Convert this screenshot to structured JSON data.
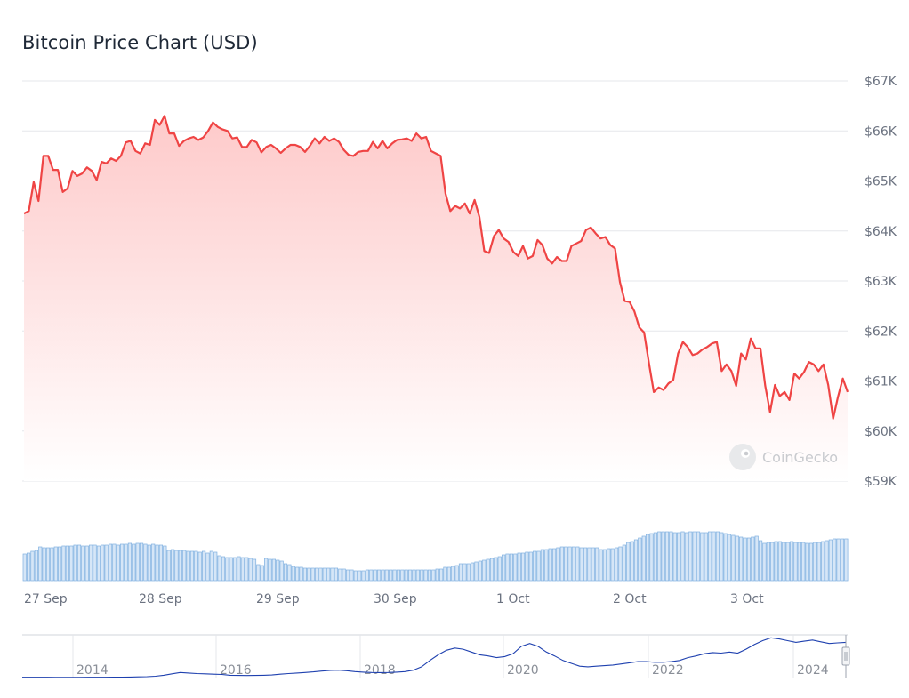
{
  "page": {
    "title": "Bitcoin Price Chart (USD)"
  },
  "watermark": {
    "text": "CoinGecko",
    "icon": "coingecko-logo-icon"
  },
  "colors": {
    "price_line": "#ef4444",
    "area_top": "#fecaca",
    "area_bottom": "#ffffff",
    "volume_fill": "#d6e6f7",
    "volume_stroke": "#7fb0e0",
    "navigator_line": "#1e40af",
    "grid": "#e5e7eb"
  },
  "chart_data": [
    {
      "type": "line",
      "title": "Bitcoin Price Chart (USD)",
      "series": [
        {
          "values": [
            64350,
            64400,
            64980,
            64600,
            65500,
            65500,
            65220,
            65220,
            64780,
            64850,
            65200,
            65100,
            65150,
            65270,
            65200,
            65020,
            65380,
            65350,
            65450,
            65400,
            65500,
            65770,
            65800,
            65600,
            65550,
            65750,
            65720,
            66220,
            66120,
            66300,
            65950,
            65950,
            65700,
            65800,
            65850,
            65880,
            65820,
            65870,
            66000,
            66170,
            66080,
            66030,
            66000,
            65850,
            65870,
            65680,
            65680,
            65820,
            65770,
            65570,
            65680,
            65720,
            65650,
            65560,
            65650,
            65720,
            65720,
            65680,
            65580,
            65700,
            65850,
            65750,
            65880,
            65800,
            65850,
            65780,
            65620,
            65520,
            65500,
            65580,
            65600,
            65600,
            65780,
            65650,
            65800,
            65650,
            65750,
            65820,
            65830,
            65850,
            65800,
            65950,
            65850,
            65880,
            65600,
            65550,
            65500,
            64750,
            64400,
            64500,
            64450,
            64550,
            64350,
            64620,
            64280,
            63600,
            63560,
            63900,
            64020,
            63850,
            63780,
            63580,
            63500,
            63700,
            63450,
            63500,
            63820,
            63720,
            63450,
            63350,
            63480,
            63400,
            63400,
            63700,
            63750,
            63800,
            64020,
            64070,
            63950,
            63850,
            63880,
            63720,
            63650,
            62980,
            62600,
            62580,
            62390,
            62070,
            61970,
            61350,
            60780,
            60870,
            60820,
            60950,
            61020,
            61550,
            61780,
            61680,
            61520,
            61550,
            61630,
            61680,
            61750,
            61780,
            61200,
            61330,
            61200,
            60900,
            61550,
            61430,
            61850,
            61650,
            61650,
            60900,
            60380,
            60920,
            60700,
            60780,
            60620,
            61150,
            61050,
            61180,
            61380,
            61330,
            61200,
            61330,
            60920,
            60250,
            60680,
            61050,
            60780
          ],
          "x_range": [
            "27 Sep",
            "3 Oct"
          ]
        }
      ],
      "y_ticks": [
        "$59K",
        "$60K",
        "$61K",
        "$62K",
        "$63K",
        "$64K",
        "$65K",
        "$66K",
        "$67K"
      ],
      "ylim": [
        59000,
        67000
      ],
      "x_ticks": [
        "27 Sep",
        "28 Sep",
        "29 Sep",
        "30 Sep",
        "1 Oct",
        "2 Oct",
        "3 Oct"
      ],
      "grid": true,
      "legend": "none",
      "area_fill": true
    },
    {
      "type": "bar",
      "series": [
        {
          "values": [
            30,
            31,
            33,
            34,
            38,
            37,
            37,
            37,
            38,
            38,
            39,
            39,
            39,
            40,
            40,
            39,
            39,
            40,
            40,
            39,
            40,
            40,
            41,
            41,
            40,
            41,
            41,
            42,
            41,
            42,
            42,
            41,
            40,
            41,
            40,
            40,
            39,
            34,
            35,
            34,
            34,
            34,
            33,
            33,
            33,
            32,
            33,
            31,
            33,
            32,
            28,
            27,
            26,
            26,
            26,
            27,
            26,
            26,
            25,
            24,
            18,
            17,
            25,
            24,
            24,
            23,
            22,
            19,
            18,
            16,
            15,
            15,
            14,
            14,
            14,
            14,
            14,
            14,
            14,
            14,
            14,
            13,
            13,
            12,
            12,
            11,
            11,
            11,
            12,
            12,
            12,
            12,
            12,
            12,
            12,
            12,
            12,
            12,
            12,
            12,
            12,
            12,
            12,
            12,
            12,
            12,
            13,
            13,
            15,
            15,
            16,
            17,
            19,
            19,
            19,
            20,
            21,
            22,
            23,
            24,
            25,
            26,
            27,
            29,
            30,
            30,
            30,
            31,
            31,
            32,
            32,
            33,
            33,
            35,
            35,
            36,
            36,
            37,
            38,
            38,
            38,
            38,
            38,
            37,
            37,
            37,
            37,
            37,
            35,
            35,
            36,
            36,
            37,
            38,
            40,
            43,
            44,
            46,
            48,
            50,
            52,
            53,
            54,
            55,
            55,
            55,
            55,
            54,
            54,
            55,
            54,
            55,
            55,
            55,
            54,
            54,
            55,
            55,
            55,
            54,
            53,
            52,
            51,
            50,
            49,
            48,
            48,
            49,
            50,
            45,
            42,
            43,
            43,
            44,
            44,
            43,
            43,
            44,
            43,
            43,
            43,
            42,
            42,
            43,
            43,
            44,
            45,
            46,
            47,
            47,
            47,
            47
          ]
        }
      ]
    },
    {
      "type": "line",
      "x_ticks": [
        "2014",
        "2016",
        "2018",
        "2020",
        "2022",
        "2024"
      ],
      "series": [
        {
          "values": [
            0.5,
            0.5,
            0.4,
            0.4,
            0.3,
            0.3,
            0.3,
            0.3,
            0.4,
            0.4,
            0.5,
            0.6,
            0.8,
            1.0,
            1.2,
            1.6,
            2.4,
            4.0,
            6.5,
            9.0,
            8.0,
            7.0,
            6.5,
            6.0,
            5.5,
            4.0,
            3.8,
            3.6,
            3.8,
            4.0,
            4.5,
            6.0,
            7.0,
            8.0,
            9.0,
            10.0,
            11.5,
            12.5,
            13.0,
            12.0,
            10.5,
            9.5,
            9.0,
            8.8,
            9.0,
            9.5,
            10.5,
            13.0,
            19.0,
            30.0,
            40.0,
            48.0,
            52.0,
            50.0,
            45.0,
            40.0,
            38.0,
            35.0,
            37.0,
            42.0,
            55.0,
            60.0,
            55.0,
            45.0,
            38.0,
            30.0,
            25.0,
            20.0,
            19.0,
            20.0,
            21.0,
            22.0,
            24.0,
            26.0,
            28.0,
            28.0,
            27.0,
            27.0,
            28.0,
            30.0,
            35.0,
            38.0,
            42.0,
            44.0,
            43.0,
            45.0,
            43.0,
            50.0,
            58.0,
            65.0,
            70.0,
            68.0,
            65.0,
            62.0,
            64.0,
            66.0,
            63.0,
            60.0,
            61.0,
            62.0
          ]
        }
      ]
    }
  ]
}
